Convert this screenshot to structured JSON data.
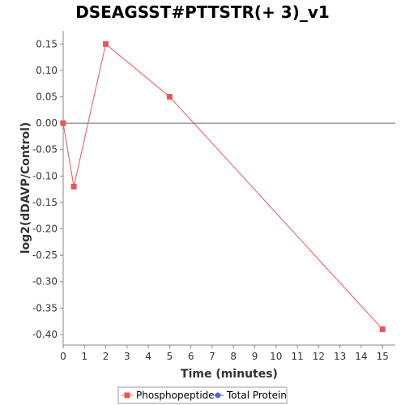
{
  "chart_data": {
    "type": "line",
    "title": "DSEAGSST#PTTSTR(+ 3)_v1",
    "xlabel": "Time (minutes)",
    "ylabel": "log2(dDAVP/Control)",
    "xlim": [
      0,
      15.6
    ],
    "ylim": [
      -0.42,
      0.175
    ],
    "x_ticks": [
      0,
      1,
      2,
      3,
      4,
      5,
      6,
      7,
      8,
      9,
      10,
      11,
      12,
      13,
      14,
      15
    ],
    "y_ticks": [
      0.15,
      0.1,
      0.05,
      0.0,
      -0.05,
      -0.1,
      -0.15,
      -0.2,
      -0.25,
      -0.3,
      -0.35,
      -0.4
    ],
    "y_tick_labels": [
      "0.15",
      "0.10",
      "0.05",
      "0.00",
      "-0.05",
      "-0.10",
      "-0.15",
      "-0.20",
      "-0.25",
      "-0.30",
      "-0.35",
      "-0.40"
    ],
    "zero_line": true,
    "grid": false,
    "legend_position": "bottom-center",
    "series": [
      {
        "name": "Phosphopeptide",
        "color": "#e8555a",
        "marker": "square",
        "points": [
          {
            "x": 0,
            "y": 0.0
          },
          {
            "x": 0.5,
            "y": -0.12
          },
          {
            "x": 2,
            "y": 0.15
          },
          {
            "x": 5,
            "y": 0.05
          },
          {
            "x": 15,
            "y": -0.39
          }
        ]
      },
      {
        "name": "Total Protein",
        "color": "#5560e8",
        "marker": "circle",
        "points": []
      }
    ]
  }
}
